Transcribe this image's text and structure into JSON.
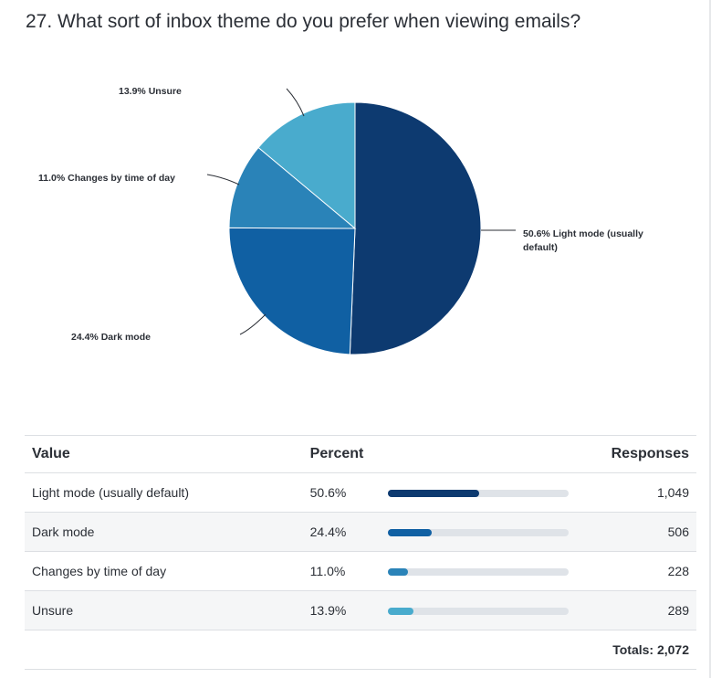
{
  "question": {
    "title": "27. What sort of inbox theme do you prefer when viewing emails?"
  },
  "chart_data": {
    "type": "pie",
    "slices": [
      {
        "label": "Light mode (usually default)",
        "percent": 50.6,
        "color": "#0d3a70"
      },
      {
        "label": "Dark mode",
        "percent": 24.4,
        "color": "#1060a3"
      },
      {
        "label": "Changes by time of day",
        "percent": 11.0,
        "color": "#2a83b8"
      },
      {
        "label": "Unsure",
        "percent": 13.9,
        "color": "#49abcd"
      }
    ],
    "slice_labels": [
      "50.6% Light mode (usually default)",
      "24.4% Dark mode",
      "11.0% Changes by time of day",
      "13.9% Unsure"
    ]
  },
  "table": {
    "headers": {
      "value": "Value",
      "percent": "Percent",
      "responses": "Responses"
    },
    "rows": [
      {
        "value": "Light mode (usually default)",
        "percent": "50.6%",
        "pct": 50.6,
        "responses": "1,049",
        "color": "#0d3a70"
      },
      {
        "value": "Dark mode",
        "percent": "24.4%",
        "pct": 24.4,
        "responses": "506",
        "color": "#1060a3"
      },
      {
        "value": "Changes by time of day",
        "percent": "11.0%",
        "pct": 11.0,
        "responses": "228",
        "color": "#2a83b8"
      },
      {
        "value": "Unsure",
        "percent": "13.9%",
        "pct": 13.9,
        "responses": "289",
        "color": "#49abcd"
      }
    ],
    "totals": "Totals: 2,072"
  }
}
